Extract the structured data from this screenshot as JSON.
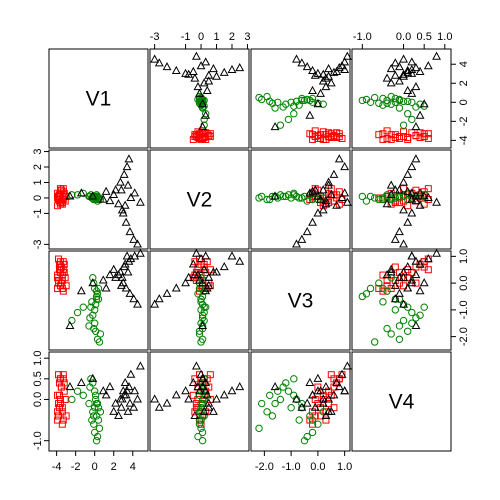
{
  "chart_data": {
    "type": "scatter",
    "variables": [
      "V1",
      "V2",
      "V3",
      "V4"
    ],
    "series": [
      {
        "group": 1,
        "color": "#ff0000",
        "marker": "square"
      },
      {
        "group": 2,
        "color": "#008000",
        "marker": "circle"
      },
      {
        "group": 3,
        "color": "#000000",
        "marker": "triangle"
      }
    ],
    "ranges": {
      "V1": [
        -4.8,
        5.6
      ],
      "V2": [
        -3.3,
        3.1
      ],
      "V3": [
        -2.5,
        1.2
      ],
      "V4": [
        -1.25,
        1.15
      ]
    },
    "ticks": {
      "V1": [
        "-4",
        "-2",
        "0",
        "2",
        "4"
      ],
      "V2": [
        "-3",
        "-1",
        "0",
        "1",
        "2",
        "3"
      ],
      "V3": [
        "-2.0",
        "-1.0",
        "0.0",
        "1.0"
      ],
      "V4": [
        "-1.0",
        "0.0",
        "0.5",
        "1.0"
      ]
    },
    "tick_values": {
      "V1": [
        -4,
        -2,
        0,
        2,
        4
      ],
      "V2": [
        -3,
        -1,
        0,
        1,
        2,
        3
      ],
      "V3": [
        -2,
        -1,
        0,
        1
      ],
      "V4": [
        -1,
        0,
        0.5,
        1
      ]
    },
    "points": [
      [
        -3.6,
        0.6,
        -0.1,
        0.0,
        1
      ],
      [
        -3.8,
        0.1,
        0.0,
        -0.1,
        1
      ],
      [
        -3.4,
        -0.3,
        0.1,
        -0.2,
        1
      ],
      [
        -3.9,
        -0.5,
        0.2,
        0.1,
        1
      ],
      [
        -3.2,
        0.3,
        0.4,
        0.2,
        1
      ],
      [
        -3.5,
        -0.2,
        0.6,
        0.3,
        1
      ],
      [
        -3.7,
        0.0,
        0.7,
        0.4,
        1
      ],
      [
        -3.3,
        0.4,
        0.8,
        0.5,
        1
      ],
      [
        -3.8,
        -0.1,
        0.9,
        0.6,
        1
      ],
      [
        -3.6,
        0.2,
        0.6,
        0.5,
        1
      ],
      [
        -3.4,
        -0.4,
        0.3,
        -0.3,
        1
      ],
      [
        -3.0,
        0.1,
        -0.1,
        -0.4,
        1
      ],
      [
        -3.9,
        0.3,
        -0.2,
        -0.3,
        1
      ],
      [
        -3.3,
        -0.1,
        -0.3,
        -0.5,
        1
      ],
      [
        -3.7,
        0.2,
        0.5,
        0.1,
        1
      ],
      [
        -3.1,
        -0.2,
        0.2,
        0.0,
        1
      ],
      [
        -3.5,
        0.5,
        0.0,
        0.3,
        1
      ],
      [
        -3.6,
        -0.3,
        0.4,
        -0.1,
        1
      ],
      [
        -3.8,
        0.1,
        0.1,
        -0.4,
        1
      ],
      [
        -3.4,
        0.0,
        -0.2,
        -0.6,
        1
      ],
      [
        -3.2,
        0.2,
        0.7,
        0.4,
        1
      ],
      [
        -3.7,
        -0.2,
        0.6,
        -0.2,
        1
      ],
      [
        -3.9,
        0.0,
        0.3,
        -0.5,
        1
      ],
      [
        -3.3,
        0.6,
        0.5,
        0.6,
        1
      ],
      [
        -3.6,
        -0.4,
        0.8,
        0.5,
        1
      ],
      [
        -0.4,
        0.2,
        -0.9,
        0.5,
        2
      ],
      [
        -0.2,
        0.1,
        -1.2,
        0.4,
        2
      ],
      [
        0.0,
        0.0,
        -1.5,
        0.2,
        2
      ],
      [
        0.1,
        -0.1,
        -1.8,
        0.1,
        2
      ],
      [
        0.3,
        0.1,
        -2.1,
        -0.1,
        2
      ],
      [
        0.4,
        0.0,
        -0.6,
        -0.2,
        2
      ],
      [
        0.2,
        0.2,
        -0.3,
        -0.4,
        2
      ],
      [
        -0.1,
        -0.1,
        0.0,
        -0.6,
        2
      ],
      [
        0.0,
        0.1,
        -0.2,
        -0.8,
        2
      ],
      [
        0.3,
        -0.2,
        -0.4,
        -0.9,
        2
      ],
      [
        -0.3,
        0.0,
        -0.7,
        -0.5,
        2
      ],
      [
        -1.2,
        0.3,
        -0.9,
        0.1,
        2
      ],
      [
        -1.8,
        0.2,
        -1.1,
        0.2,
        2
      ],
      [
        -2.4,
        0.2,
        -1.4,
        0.0,
        2
      ],
      [
        -0.6,
        0.1,
        -1.6,
        -0.1,
        2
      ],
      [
        0.6,
        -0.1,
        -1.9,
        -0.3,
        2
      ],
      [
        0.5,
        0.0,
        -2.2,
        -0.7,
        2
      ],
      [
        0.2,
        0.1,
        -0.5,
        -1.0,
        2
      ],
      [
        -0.2,
        0.0,
        0.2,
        -0.3,
        2
      ],
      [
        0.0,
        0.0,
        -1.0,
        -0.2,
        2
      ],
      [
        0.1,
        0.1,
        -0.8,
        0.0,
        2
      ],
      [
        -0.5,
        0.1,
        -1.3,
        0.3,
        2
      ],
      [
        0.4,
        -0.1,
        -0.2,
        -0.5,
        2
      ],
      [
        0.2,
        0.0,
        -0.6,
        -0.1,
        2
      ],
      [
        -0.1,
        0.1,
        -1.7,
        -0.4,
        2
      ],
      [
        3.6,
        2.5,
        0.8,
        0.3,
        3
      ],
      [
        3.4,
        2.0,
        1.0,
        0.2,
        3
      ],
      [
        3.1,
        1.5,
        0.6,
        0.1,
        3
      ],
      [
        2.7,
        1.0,
        0.4,
        0.0,
        3
      ],
      [
        2.2,
        0.5,
        0.2,
        -0.1,
        3
      ],
      [
        3.0,
        -1.0,
        0.0,
        0.2,
        3
      ],
      [
        3.3,
        -1.6,
        -0.2,
        0.1,
        3
      ],
      [
        3.7,
        -2.2,
        -0.4,
        -0.1,
        3
      ],
      [
        4.1,
        -2.7,
        -0.6,
        -0.2,
        3
      ],
      [
        4.5,
        -3.0,
        -0.8,
        0.0,
        3
      ],
      [
        1.6,
        -0.2,
        0.3,
        0.3,
        3
      ],
      [
        0.9,
        -0.1,
        0.1,
        0.2,
        3
      ],
      [
        -0.2,
        0.1,
        0.0,
        0.5,
        3
      ],
      [
        -1.4,
        0.3,
        -0.3,
        0.4,
        3
      ],
      [
        -2.6,
        0.1,
        -1.6,
        0.3,
        3
      ],
      [
        2.0,
        0.2,
        0.5,
        -0.3,
        3
      ],
      [
        2.5,
        -0.4,
        0.3,
        -0.4,
        3
      ],
      [
        3.8,
        0.0,
        0.9,
        0.6,
        3
      ],
      [
        4.2,
        0.3,
        1.0,
        0.2,
        3
      ],
      [
        2.8,
        0.5,
        -0.1,
        -0.2,
        3
      ],
      [
        3.2,
        -0.5,
        0.7,
        0.4,
        3
      ],
      [
        1.2,
        0.4,
        -0.2,
        0.1,
        3
      ],
      [
        4.8,
        -0.3,
        1.1,
        0.8,
        3
      ],
      [
        3.5,
        0.8,
        0.4,
        -0.3,
        3
      ],
      [
        2.9,
        -0.8,
        0.2,
        0.0,
        3
      ]
    ]
  }
}
